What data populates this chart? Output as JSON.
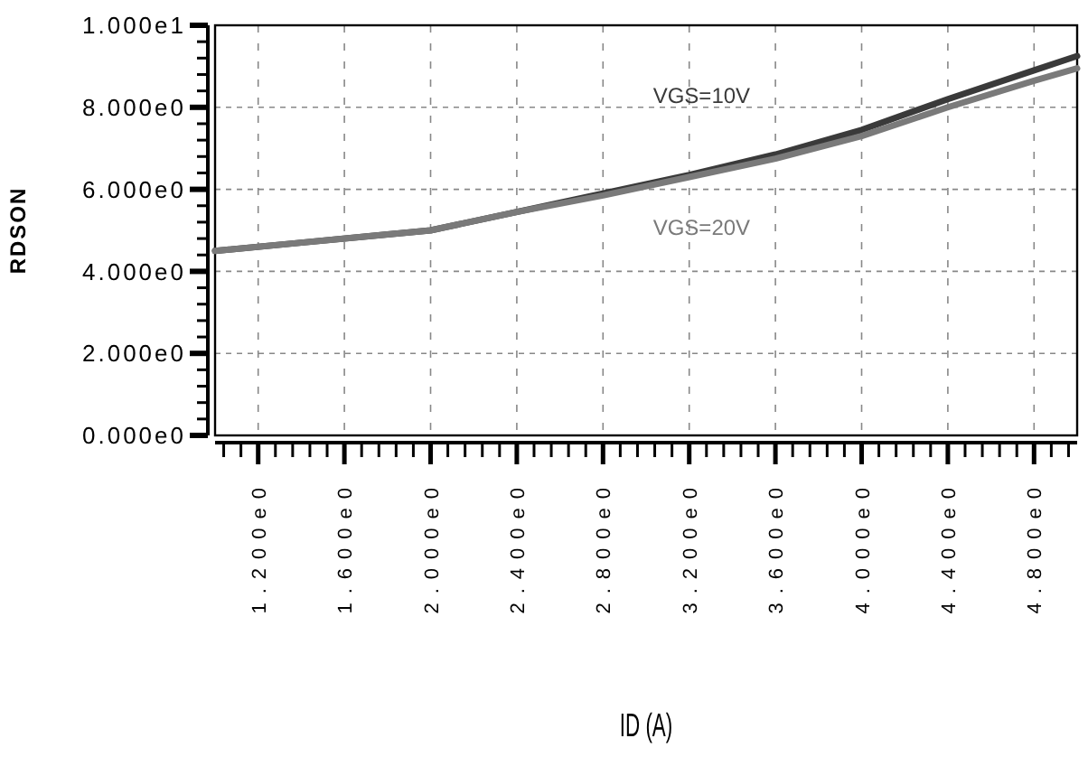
{
  "chart_data": {
    "type": "line",
    "xlabel": "ID (A)",
    "ylabel": "RDSON",
    "x": [
      1.0,
      1.4,
      1.8,
      2.0,
      2.4,
      2.8,
      3.2,
      3.6,
      4.0,
      4.4,
      4.8,
      5.0
    ],
    "series": [
      {
        "name": "VGS=10V",
        "color": "#3a3a3a",
        "values": [
          4.5,
          4.7,
          4.9,
          5.0,
          5.45,
          5.9,
          6.35,
          6.85,
          7.45,
          8.2,
          8.9,
          9.25
        ]
      },
      {
        "name": "VGS=20V",
        "color": "#7a7a7a",
        "values": [
          4.5,
          4.7,
          4.9,
          5.0,
          5.45,
          5.85,
          6.3,
          6.75,
          7.3,
          8.0,
          8.65,
          8.95
        ]
      }
    ],
    "xlim": [
      1.0,
      5.0
    ],
    "ylim": [
      0,
      10
    ],
    "xticks": [
      {
        "value": 1.04,
        "label": null
      },
      {
        "value": 1.12,
        "label": null
      },
      {
        "value": 1.2,
        "label": "1.200e0"
      },
      {
        "value": 1.28,
        "label": null
      },
      {
        "value": 1.36,
        "label": null
      },
      {
        "value": 1.44,
        "label": null
      },
      {
        "value": 1.52,
        "label": null
      },
      {
        "value": 1.6,
        "label": "1.600e0"
      },
      {
        "value": 1.68,
        "label": null
      },
      {
        "value": 1.76,
        "label": null
      },
      {
        "value": 1.84,
        "label": null
      },
      {
        "value": 1.92,
        "label": null
      },
      {
        "value": 2.0,
        "label": "2.000e0"
      },
      {
        "value": 2.08,
        "label": null
      },
      {
        "value": 2.16,
        "label": null
      },
      {
        "value": 2.24,
        "label": null
      },
      {
        "value": 2.32,
        "label": null
      },
      {
        "value": 2.4,
        "label": "2.400e0"
      },
      {
        "value": 2.48,
        "label": null
      },
      {
        "value": 2.56,
        "label": null
      },
      {
        "value": 2.64,
        "label": null
      },
      {
        "value": 2.72,
        "label": null
      },
      {
        "value": 2.8,
        "label": "2.800e0"
      },
      {
        "value": 2.88,
        "label": null
      },
      {
        "value": 2.96,
        "label": null
      },
      {
        "value": 3.04,
        "label": null
      },
      {
        "value": 3.12,
        "label": null
      },
      {
        "value": 3.2,
        "label": "3.200e0"
      },
      {
        "value": 3.28,
        "label": null
      },
      {
        "value": 3.36,
        "label": null
      },
      {
        "value": 3.44,
        "label": null
      },
      {
        "value": 3.52,
        "label": null
      },
      {
        "value": 3.6,
        "label": "3.600e0"
      },
      {
        "value": 3.68,
        "label": null
      },
      {
        "value": 3.76,
        "label": null
      },
      {
        "value": 3.84,
        "label": null
      },
      {
        "value": 3.92,
        "label": null
      },
      {
        "value": 4.0,
        "label": "4.000e0"
      },
      {
        "value": 4.08,
        "label": null
      },
      {
        "value": 4.16,
        "label": null
      },
      {
        "value": 4.24,
        "label": null
      },
      {
        "value": 4.32,
        "label": null
      },
      {
        "value": 4.4,
        "label": "4.400e0"
      },
      {
        "value": 4.48,
        "label": null
      },
      {
        "value": 4.56,
        "label": null
      },
      {
        "value": 4.64,
        "label": null
      },
      {
        "value": 4.72,
        "label": null
      },
      {
        "value": 4.8,
        "label": "4.800e0"
      },
      {
        "value": 4.88,
        "label": null
      },
      {
        "value": 4.96,
        "label": null
      }
    ],
    "yticks": [
      {
        "value": 0,
        "label": "0.000e0"
      },
      {
        "value": 0.4,
        "label": null
      },
      {
        "value": 0.8,
        "label": null
      },
      {
        "value": 1.2,
        "label": null
      },
      {
        "value": 1.6,
        "label": null
      },
      {
        "value": 2,
        "label": "2.000e0"
      },
      {
        "value": 2.4,
        "label": null
      },
      {
        "value": 2.8,
        "label": null
      },
      {
        "value": 3.2,
        "label": null
      },
      {
        "value": 3.6,
        "label": null
      },
      {
        "value": 4,
        "label": "4.000e0"
      },
      {
        "value": 4.4,
        "label": null
      },
      {
        "value": 4.8,
        "label": null
      },
      {
        "value": 5.2,
        "label": null
      },
      {
        "value": 5.6,
        "label": null
      },
      {
        "value": 6,
        "label": "6.000e0"
      },
      {
        "value": 6.4,
        "label": null
      },
      {
        "value": 6.8,
        "label": null
      },
      {
        "value": 7.2,
        "label": null
      },
      {
        "value": 7.6,
        "label": null
      },
      {
        "value": 8,
        "label": "8.000e0"
      },
      {
        "value": 8.4,
        "label": null
      },
      {
        "value": 8.8,
        "label": null
      },
      {
        "value": 9.2,
        "label": null
      },
      {
        "value": 9.6,
        "label": null
      },
      {
        "value": 10,
        "label": "1.000e1"
      }
    ],
    "grid": true,
    "marker": "none",
    "line_style": "solid",
    "legend": false
  }
}
